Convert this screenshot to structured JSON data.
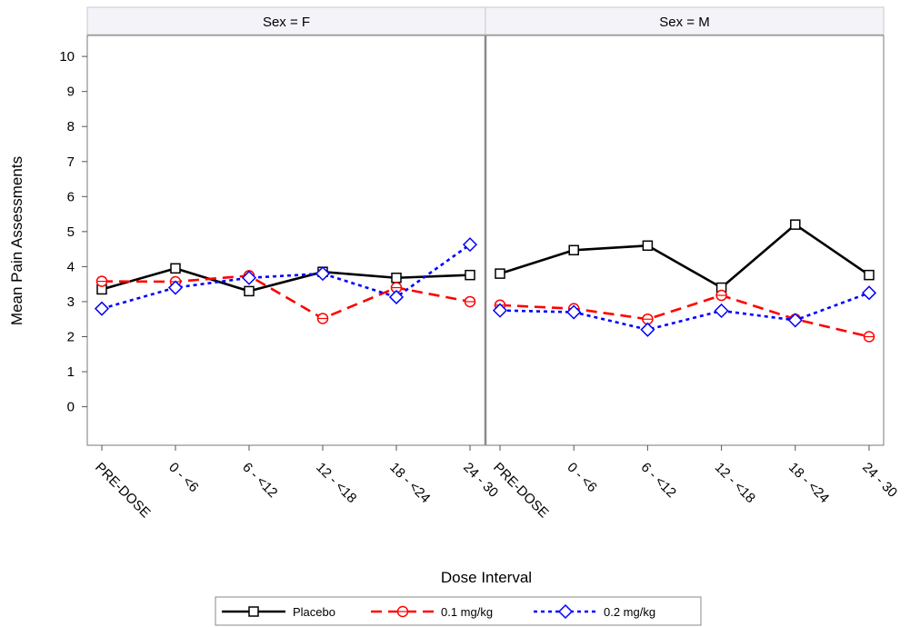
{
  "chart_data": {
    "type": "line",
    "ylabel": "Mean Pain Assessments",
    "xlabel": "Dose Interval",
    "ylim": [
      -1.1,
      10.6
    ],
    "yticks": [
      0,
      1,
      2,
      3,
      4,
      5,
      6,
      7,
      8,
      9,
      10
    ],
    "categories": [
      "PRE-DOSE",
      "0 - <6",
      "6 - <12",
      "12 - <18",
      "18 - <24",
      "24 - 30"
    ],
    "grid": false,
    "legend_position": "bottom",
    "panels": [
      {
        "label": "Sex = F",
        "series": [
          {
            "name": "Placebo",
            "values": [
              3.35,
              3.95,
              3.3,
              3.85,
              3.68,
              3.76
            ]
          },
          {
            "name": "0.1 mg/kg",
            "values": [
              3.58,
              3.57,
              3.74,
              2.52,
              3.4,
              3.0
            ]
          },
          {
            "name": "0.2 mg/kg",
            "values": [
              2.8,
              3.4,
              3.68,
              3.8,
              3.13,
              4.63
            ]
          }
        ]
      },
      {
        "label": "Sex = M",
        "series": [
          {
            "name": "Placebo",
            "values": [
              3.8,
              4.47,
              4.6,
              3.4,
              5.2,
              3.76
            ]
          },
          {
            "name": "0.1 mg/kg",
            "values": [
              2.9,
              2.8,
              2.5,
              3.18,
              2.5,
              2.0
            ]
          },
          {
            "name": "0.2 mg/kg",
            "values": [
              2.75,
              2.7,
              2.2,
              2.74,
              2.47,
              3.25
            ]
          }
        ]
      }
    ],
    "series_styles": [
      {
        "name": "Placebo",
        "color": "#000000",
        "dash": "solid",
        "marker": "square"
      },
      {
        "name": "0.1 mg/kg",
        "color": "#ff0000",
        "dash": "dashed",
        "marker": "circle"
      },
      {
        "name": "0.2 mg/kg",
        "color": "#0000ff",
        "dash": "dotted",
        "marker": "diamond"
      }
    ]
  }
}
